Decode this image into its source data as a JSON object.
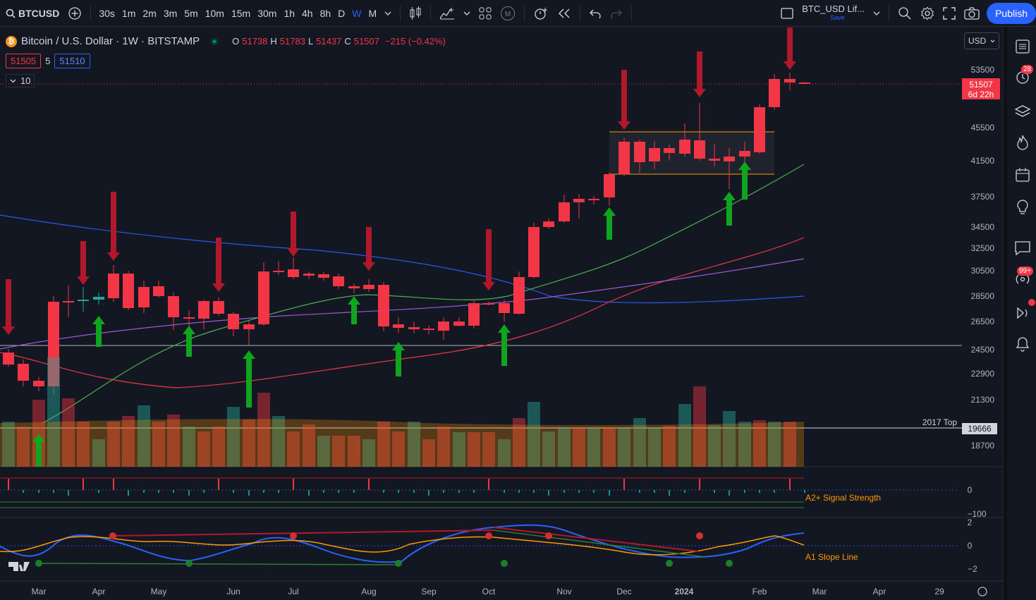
{
  "toolbar": {
    "symbol": "BTCUSD",
    "intervals": [
      "30s",
      "1m",
      "2m",
      "3m",
      "5m",
      "10m",
      "15m",
      "30m",
      "1h",
      "4h",
      "8h",
      "D",
      "W",
      "M"
    ],
    "active_interval": "W",
    "layout_name": "BTC_USD Lif...",
    "layout_save": "Save",
    "publish_label": "Publish"
  },
  "legend": {
    "title": "Bitcoin / U.S. Dollar · 1W · BITSTAMP",
    "o_label": "O",
    "o_value": "51738",
    "h_label": "H",
    "h_value": "51783",
    "l_label": "L",
    "l_value": "51437",
    "c_label": "C",
    "c_value": "51507",
    "change": "−215 (−0.42%)",
    "bid": "51505",
    "spread": "5",
    "ask": "51510",
    "indicator_count": "10"
  },
  "currency": "USD",
  "price_axis": {
    "labels": [
      "53500",
      "45500",
      "41500",
      "37500",
      "34500",
      "32500",
      "30500",
      "28500",
      "26500",
      "24500",
      "22900",
      "21300",
      "18700"
    ],
    "current_price": "51507",
    "countdown": "6d 22h",
    "level_label": "2017 Top",
    "level_value": "19666"
  },
  "indicators": {
    "signal_strength": {
      "name": "A2+ Signal Strength",
      "ticks": [
        "0",
        "−100"
      ]
    },
    "slope_line": {
      "name": "A1 Slope Line",
      "ticks": [
        "2",
        "0",
        "−2"
      ]
    }
  },
  "time_axis": [
    "Mar",
    "Apr",
    "May",
    "Jun",
    "Jul",
    "Aug",
    "Sep",
    "Oct",
    "Nov",
    "Dec",
    "2024",
    "Feb",
    "Mar",
    "Apr",
    "29"
  ],
  "sidebar": {
    "alerts_badge": "28",
    "ideas_badge": "99+"
  },
  "colors": {
    "bull": "#26a69a",
    "bear": "#f23645",
    "accent": "#2962ff",
    "background": "#131722"
  }
}
